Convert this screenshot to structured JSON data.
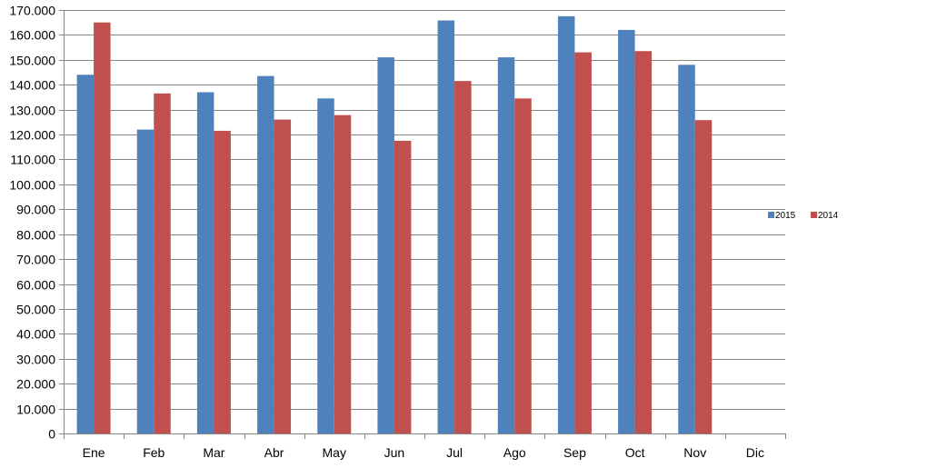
{
  "chart_data": {
    "type": "bar",
    "categories": [
      "Ene",
      "Feb",
      "Mar",
      "Abr",
      "May",
      "Jun",
      "Jul",
      "Ago",
      "Sep",
      "Oct",
      "Nov",
      "Dic"
    ],
    "series": [
      {
        "name": "2015",
        "color": "#4F81BD",
        "values": [
          144000,
          122000,
          137000,
          143500,
          134500,
          151000,
          165800,
          151000,
          167500,
          162000,
          148000,
          null
        ]
      },
      {
        "name": "2014",
        "color": "#C0504D",
        "values": [
          165000,
          136500,
          121500,
          126000,
          127800,
          117500,
          141500,
          134500,
          153000,
          153500,
          125800,
          null
        ]
      }
    ],
    "ylim": [
      0,
      170000
    ],
    "ytick_step": 10000,
    "ytick_labels": [
      "0",
      "10.000",
      "20.000",
      "30.000",
      "40.000",
      "50.000",
      "60.000",
      "70.000",
      "80.000",
      "90.000",
      "100.000",
      "110.000",
      "120.000",
      "130.000",
      "140.000",
      "150.000",
      "160.000",
      "170.000"
    ],
    "title": "",
    "xlabel": "",
    "ylabel": "",
    "grid": true,
    "legend_position": "right",
    "gridline_color": "#868686",
    "axis_color": "#868686"
  }
}
